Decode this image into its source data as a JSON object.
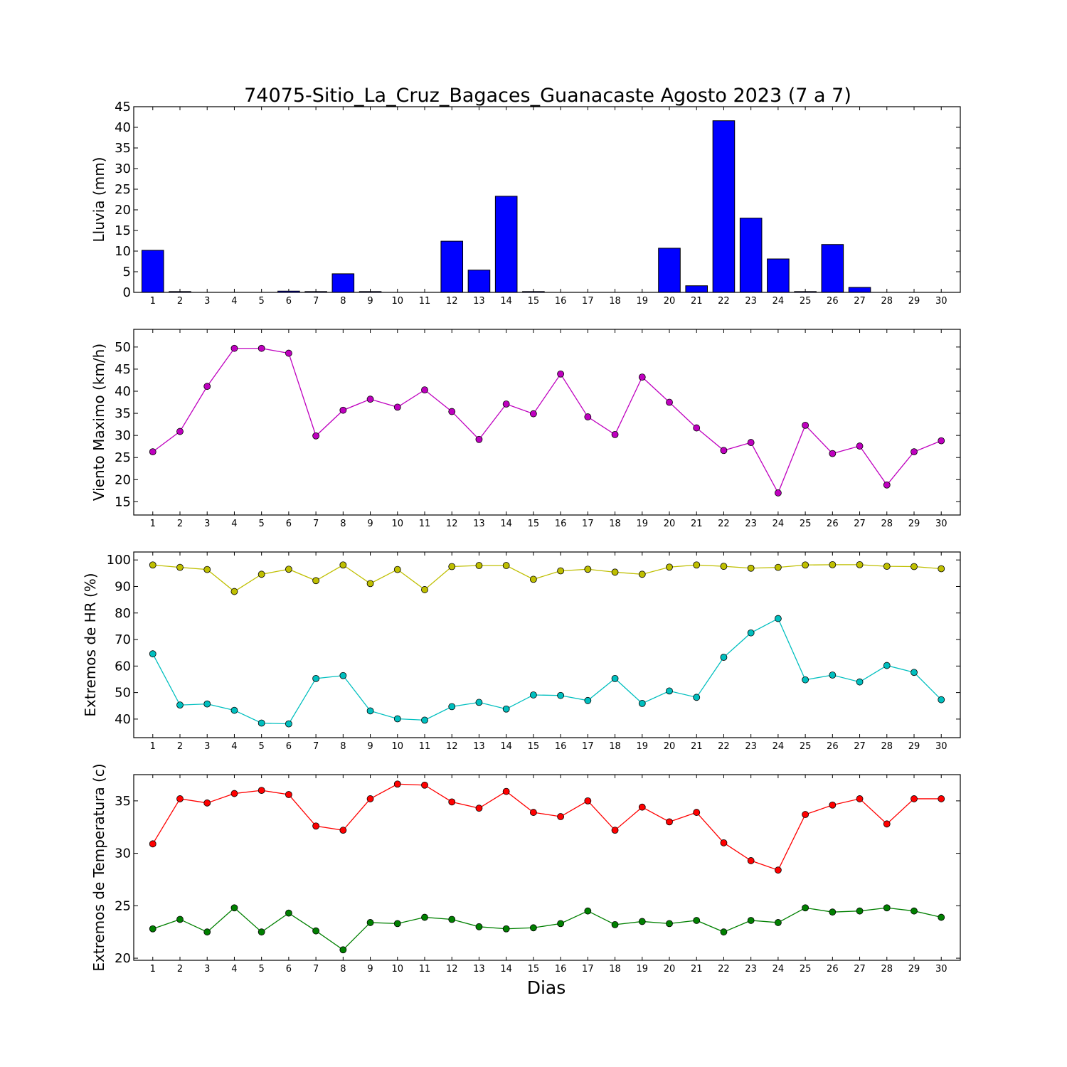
{
  "figure_title": "74075-Sitio_La_Cruz_Bagaces_Guanacaste Agosto 2023  (7 a 7)",
  "xlabel": "Dias",
  "chart_data": [
    {
      "type": "bar",
      "ylabel": "Lluvia (mm)",
      "ylim": [
        0,
        45
      ],
      "yticks": [
        0,
        5,
        10,
        15,
        20,
        25,
        30,
        35,
        40,
        45
      ],
      "x": [
        1,
        2,
        3,
        4,
        5,
        6,
        7,
        8,
        9,
        10,
        11,
        12,
        13,
        14,
        15,
        16,
        17,
        18,
        19,
        20,
        21,
        22,
        23,
        24,
        25,
        26,
        27,
        28,
        29,
        30
      ],
      "series": [
        {
          "color": "#0000ff",
          "values": [
            10.2,
            0.2,
            0,
            0,
            0,
            0.3,
            0.2,
            4.5,
            0.2,
            0,
            0,
            12.4,
            5.4,
            23.3,
            0.2,
            0,
            0,
            0,
            0,
            10.7,
            1.6,
            41.6,
            18,
            8.1,
            0.2,
            11.6,
            1.2,
            0,
            0,
            0
          ]
        }
      ]
    },
    {
      "type": "line",
      "ylabel": "Viento Maximo (km/h)",
      "ylim": [
        12,
        54
      ],
      "yticks": [
        15,
        20,
        25,
        30,
        35,
        40,
        45,
        50
      ],
      "x": [
        1,
        2,
        3,
        4,
        5,
        6,
        7,
        8,
        9,
        10,
        11,
        12,
        13,
        14,
        15,
        16,
        17,
        18,
        19,
        20,
        21,
        22,
        23,
        24,
        25,
        26,
        27,
        28,
        29,
        30
      ],
      "series": [
        {
          "color": "#bf00bf",
          "values": [
            26.3,
            30.9,
            41.1,
            49.7,
            49.7,
            48.6,
            29.9,
            35.7,
            38.2,
            36.4,
            40.3,
            35.4,
            29.1,
            37.1,
            34.9,
            43.9,
            34.2,
            30.2,
            43.2,
            37.5,
            31.7,
            26.6,
            28.4,
            17,
            32.3,
            25.9,
            27.6,
            18.8,
            26.3,
            28.8
          ]
        }
      ]
    },
    {
      "type": "line",
      "ylabel": "Extremos de HR (%)",
      "ylim": [
        33,
        103
      ],
      "yticks": [
        40,
        50,
        60,
        70,
        80,
        90,
        100
      ],
      "x": [
        1,
        2,
        3,
        4,
        5,
        6,
        7,
        8,
        9,
        10,
        11,
        12,
        13,
        14,
        15,
        16,
        17,
        18,
        19,
        20,
        21,
        22,
        23,
        24,
        25,
        26,
        27,
        28,
        29,
        30
      ],
      "series": [
        {
          "color": "#bfbf00",
          "values": [
            98.1,
            97.2,
            96.4,
            88.1,
            94.6,
            96.5,
            92.2,
            98.1,
            91.1,
            96.4,
            88.8,
            97.5,
            97.9,
            97.9,
            92.7,
            95.9,
            96.5,
            95.4,
            94.6,
            97.3,
            98.1,
            97.6,
            96.9,
            97.2,
            98.1,
            98.2,
            98.2,
            97.6,
            97.5,
            96.7
          ]
        },
        {
          "color": "#00bfbf",
          "values": [
            64.6,
            45.3,
            45.7,
            43.3,
            38.5,
            38.2,
            55.3,
            56.4,
            43.1,
            40.1,
            39.6,
            44.7,
            46.3,
            43.8,
            49.1,
            48.9,
            47,
            55.3,
            45.9,
            50.6,
            48.2,
            63.3,
            72.5,
            77.9,
            54.8,
            56.6,
            54,
            60.2,
            57.6,
            47.3
          ]
        }
      ]
    },
    {
      "type": "line",
      "ylabel": "Extremos de Temperatura (c)",
      "ylim": [
        19.8,
        37.5
      ],
      "yticks": [
        20,
        25,
        30,
        35
      ],
      "x": [
        1,
        2,
        3,
        4,
        5,
        6,
        7,
        8,
        9,
        10,
        11,
        12,
        13,
        14,
        15,
        16,
        17,
        18,
        19,
        20,
        21,
        22,
        23,
        24,
        25,
        26,
        27,
        28,
        29,
        30
      ],
      "series": [
        {
          "color": "#ff0000",
          "values": [
            30.9,
            35.2,
            34.8,
            35.7,
            36,
            35.6,
            32.6,
            32.2,
            35.2,
            36.6,
            36.5,
            34.9,
            34.3,
            35.9,
            33.9,
            33.5,
            35,
            32.2,
            34.4,
            33,
            33.9,
            31,
            29.3,
            28.4,
            33.7,
            34.6,
            35.2,
            32.8,
            35.2,
            35.2
          ]
        },
        {
          "color": "#008000",
          "values": [
            22.8,
            23.7,
            22.5,
            24.8,
            22.5,
            24.3,
            22.6,
            20.8,
            23.4,
            23.3,
            23.9,
            23.7,
            23,
            22.8,
            22.9,
            23.3,
            24.5,
            23.2,
            23.5,
            23.3,
            23.6,
            22.5,
            23.6,
            23.4,
            24.8,
            24.4,
            24.5,
            24.8,
            24.5,
            23.9
          ]
        }
      ]
    }
  ]
}
